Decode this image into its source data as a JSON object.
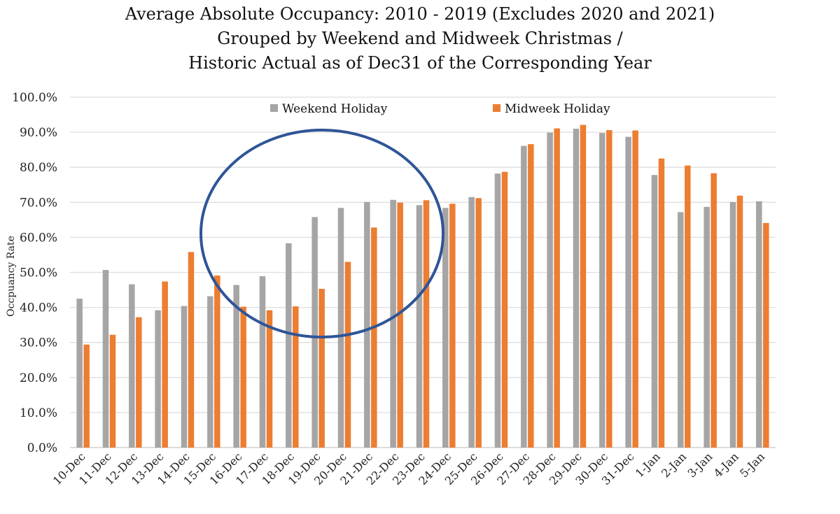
{
  "chart_data": {
    "type": "bar",
    "title": [
      "Average Absolute Occupancy:  2010 - 2019 (Excludes 2020 and 2021)",
      "Grouped by Weekend and Midweek Christmas /",
      "Historic Actual as of Dec31 of the Corresponding Year"
    ],
    "xlabel": "",
    "ylabel": "Occpuancy Rate",
    "ylim": [
      0,
      100
    ],
    "yticks": [
      "0.0%",
      "10.0%",
      "20.0%",
      "30.0%",
      "40.0%",
      "50.0%",
      "60.0%",
      "70.0%",
      "80.0%",
      "90.0%",
      "100.0%"
    ],
    "grid": true,
    "legend_position": "top-center",
    "categories": [
      "10-Dec",
      "11-Dec",
      "12-Dec",
      "13-Dec",
      "14-Dec",
      "15-Dec",
      "16-Dec",
      "17-Dec",
      "18-Dec",
      "19-Dec",
      "20-Dec",
      "21-Dec",
      "22-Dec",
      "23-Dec",
      "24-Dec",
      "25-Dec",
      "26-Dec",
      "27-Dec",
      "28-Dec",
      "29-Dec",
      "30-Dec",
      "31-Dec",
      "1-Jan",
      "2-Jan",
      "3-Jan",
      "4-Jan",
      "5-Jan"
    ],
    "series": [
      {
        "name": "Weekend Holiday",
        "color": "#A5A5A5",
        "values": [
          42.5,
          50.7,
          46.6,
          39.2,
          40.4,
          43.2,
          46.4,
          48.9,
          58.3,
          65.8,
          68.4,
          70.1,
          70.7,
          69.2,
          68.4,
          71.5,
          78.2,
          86.1,
          89.9,
          91.0,
          89.8,
          88.7,
          77.8,
          67.2,
          68.7,
          70.1,
          70.3
        ]
      },
      {
        "name": "Midweek Holiday",
        "color": "#ED7D31",
        "values": [
          29.4,
          32.2,
          37.2,
          47.4,
          55.8,
          49.1,
          40.2,
          39.2,
          40.3,
          45.3,
          53.0,
          62.8,
          69.9,
          70.6,
          69.6,
          71.2,
          78.7,
          86.6,
          91.1,
          92.1,
          90.6,
          90.5,
          82.5,
          80.5,
          78.3,
          71.9,
          64.1
        ]
      }
    ],
    "annotation": {
      "shape": "ellipse",
      "color": "#2F5597",
      "highlights": [
        "15-Dec",
        "16-Dec",
        "17-Dec",
        "18-Dec",
        "19-Dec",
        "20-Dec",
        "21-Dec",
        "22-Dec"
      ]
    }
  }
}
